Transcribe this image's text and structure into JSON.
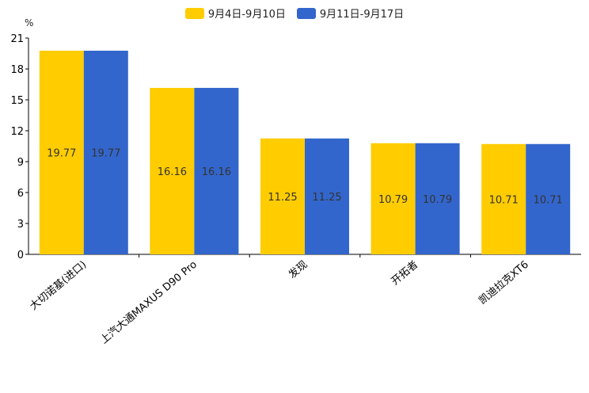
{
  "chart_data": {
    "type": "bar",
    "unit_label": "%",
    "categories": [
      "大切诺基(进口)",
      "上汽大通MAXUS D90 Pro",
      "发现",
      "开拓者",
      "凯迪拉克XT6"
    ],
    "series": [
      {
        "name": "9月4日-9月10日",
        "color": "#FFCC00",
        "values": [
          19.77,
          16.16,
          11.25,
          10.79,
          10.71
        ],
        "labels": [
          "19.77",
          "16.16",
          "11.25",
          "10.79",
          "10.71"
        ]
      },
      {
        "name": "9月11日-9月17日",
        "color": "#3366CC",
        "values": [
          19.77,
          16.16,
          11.25,
          10.79,
          10.71
        ],
        "labels": [
          "19.77",
          "16.16",
          "11.25",
          "10.79",
          "10.71"
        ]
      }
    ],
    "ylim": [
      0,
      21
    ],
    "yticks": [
      0,
      3,
      6,
      9,
      12,
      15,
      18,
      21
    ],
    "ytick_labels": [
      "0",
      "3",
      "6",
      "9",
      "12",
      "15",
      "18",
      "21"
    ],
    "legend_position": "top-center",
    "grid": false
  }
}
